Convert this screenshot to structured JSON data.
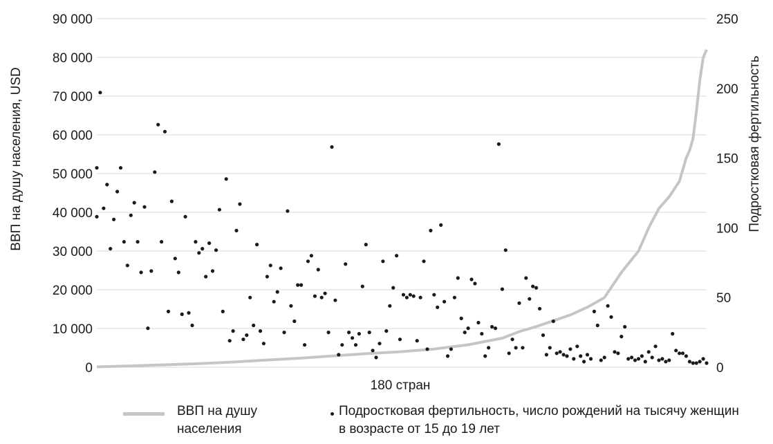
{
  "chart_data": {
    "type": "line+scatter",
    "xlabel": "180 стран",
    "ylabel_left": "ВВП на душу населения, USD",
    "ylabel_right": "Подростковая фертильность",
    "ylim_left": [
      0,
      90000
    ],
    "ylim_right": [
      0,
      250
    ],
    "yticks_left": [
      "0",
      "10 000",
      "20 000",
      "30 000",
      "40 000",
      "50 000",
      "60 000",
      "70 000",
      "80 000",
      "90 000"
    ],
    "yticks_right": [
      "0",
      "50",
      "100",
      "150",
      "200",
      "250"
    ],
    "x_count": 180,
    "legend_position": "bottom",
    "colors": {
      "gdp_line": "#c4c6c6",
      "fertility_points": "#1a1a1a"
    },
    "series": [
      {
        "name": "ВВП на душу населения",
        "kind": "line",
        "axis": "left",
        "x": [
          1,
          10,
          20,
          30,
          40,
          50,
          60,
          70,
          80,
          90,
          100,
          110,
          120,
          125,
          130,
          135,
          140,
          145,
          150,
          155,
          160,
          163,
          166,
          169,
          172,
          174,
          175,
          176,
          177,
          178,
          179,
          180
        ],
        "values": [
          100,
          300,
          600,
          900,
          1300,
          1800,
          2300,
          2900,
          3500,
          4000,
          4700,
          5800,
          7500,
          9200,
          10500,
          12000,
          13500,
          15500,
          18000,
          24500,
          30000,
          36000,
          41000,
          44000,
          48000,
          54000,
          56000,
          59000,
          66000,
          74000,
          80000,
          82000
        ]
      },
      {
        "name": "Подростковая фертильность, число рождений на тысячу женщин в возрасте от 15 до 19 лет",
        "kind": "scatter",
        "axis": "right",
        "points": [
          [
            1,
            108
          ],
          [
            1,
            143
          ],
          [
            2,
            197
          ],
          [
            3,
            114
          ],
          [
            4,
            131
          ],
          [
            5,
            85
          ],
          [
            6,
            106
          ],
          [
            7,
            126
          ],
          [
            8,
            143
          ],
          [
            9,
            90
          ],
          [
            10,
            73
          ],
          [
            11,
            109
          ],
          [
            12,
            118
          ],
          [
            13,
            90
          ],
          [
            14,
            68
          ],
          [
            15,
            115
          ],
          [
            16,
            28
          ],
          [
            17,
            69
          ],
          [
            18,
            140
          ],
          [
            19,
            174
          ],
          [
            20,
            90
          ],
          [
            21,
            169
          ],
          [
            22,
            40
          ],
          [
            23,
            119
          ],
          [
            24,
            78
          ],
          [
            25,
            68
          ],
          [
            26,
            38
          ],
          [
            27,
            108
          ],
          [
            28,
            39
          ],
          [
            29,
            30
          ],
          [
            30,
            90
          ],
          [
            31,
            82
          ],
          [
            32,
            85
          ],
          [
            33,
            65
          ],
          [
            34,
            89
          ],
          [
            35,
            69
          ],
          [
            36,
            84
          ],
          [
            37,
            113
          ],
          [
            38,
            40
          ],
          [
            39,
            135
          ],
          [
            40,
            19
          ],
          [
            41,
            26
          ],
          [
            42,
            98
          ],
          [
            43,
            117
          ],
          [
            44,
            20
          ],
          [
            45,
            23
          ],
          [
            46,
            50
          ],
          [
            47,
            30
          ],
          [
            48,
            88
          ],
          [
            49,
            26
          ],
          [
            50,
            17
          ],
          [
            51,
            65
          ],
          [
            52,
            73
          ],
          [
            53,
            47
          ],
          [
            54,
            54
          ],
          [
            55,
            71
          ],
          [
            56,
            25
          ],
          [
            57,
            112
          ],
          [
            58,
            44
          ],
          [
            59,
            33
          ],
          [
            60,
            59
          ],
          [
            61,
            59
          ],
          [
            62,
            16
          ],
          [
            63,
            76
          ],
          [
            64,
            80
          ],
          [
            65,
            51
          ],
          [
            66,
            70
          ],
          [
            67,
            50
          ],
          [
            68,
            53
          ],
          [
            69,
            25
          ],
          [
            70,
            158
          ],
          [
            71,
            48
          ],
          [
            72,
            9
          ],
          [
            73,
            16
          ],
          [
            74,
            74
          ],
          [
            75,
            25
          ],
          [
            76,
            21
          ],
          [
            77,
            16
          ],
          [
            78,
            24
          ],
          [
            79,
            58
          ],
          [
            80,
            88
          ],
          [
            81,
            25
          ],
          [
            82,
            12
          ],
          [
            83,
            7
          ],
          [
            84,
            17
          ],
          [
            85,
            76
          ],
          [
            86,
            26
          ],
          [
            87,
            44
          ],
          [
            88,
            57
          ],
          [
            89,
            80
          ],
          [
            90,
            20
          ],
          [
            91,
            52
          ],
          [
            92,
            50
          ],
          [
            93,
            52
          ],
          [
            94,
            51
          ],
          [
            95,
            19
          ],
          [
            96,
            50
          ],
          [
            97,
            76
          ],
          [
            98,
            13
          ],
          [
            99,
            98
          ],
          [
            100,
            52
          ],
          [
            101,
            43
          ],
          [
            102,
            102
          ],
          [
            103,
            47
          ],
          [
            104,
            8
          ],
          [
            105,
            13
          ],
          [
            106,
            50
          ],
          [
            107,
            64
          ],
          [
            108,
            35
          ],
          [
            109,
            25
          ],
          [
            110,
            28
          ],
          [
            111,
            63
          ],
          [
            112,
            60
          ],
          [
            113,
            32
          ],
          [
            114,
            24
          ],
          [
            115,
            8
          ],
          [
            116,
            14
          ],
          [
            117,
            29
          ],
          [
            118,
            28
          ],
          [
            119,
            160
          ],
          [
            120,
            56
          ],
          [
            121,
            84
          ],
          [
            122,
            10
          ],
          [
            123,
            20
          ],
          [
            124,
            14
          ],
          [
            125,
            46
          ],
          [
            126,
            14
          ],
          [
            127,
            64
          ],
          [
            128,
            49
          ],
          [
            129,
            58
          ],
          [
            130,
            57
          ],
          [
            131,
            42
          ],
          [
            132,
            23
          ],
          [
            133,
            9
          ],
          [
            134,
            14
          ],
          [
            135,
            33
          ],
          [
            136,
            10
          ],
          [
            137,
            11
          ],
          [
            138,
            9
          ],
          [
            139,
            8
          ],
          [
            140,
            13
          ],
          [
            141,
            6
          ],
          [
            142,
            15
          ],
          [
            143,
            8
          ],
          [
            144,
            4
          ],
          [
            145,
            9
          ],
          [
            146,
            6
          ],
          [
            147,
            40
          ],
          [
            148,
            30
          ],
          [
            149,
            5
          ],
          [
            150,
            7
          ],
          [
            151,
            44
          ],
          [
            152,
            36
          ],
          [
            153,
            11
          ],
          [
            154,
            10
          ],
          [
            155,
            22
          ],
          [
            156,
            29
          ],
          [
            157,
            6
          ],
          [
            158,
            7
          ],
          [
            159,
            5
          ],
          [
            160,
            6
          ],
          [
            161,
            8
          ],
          [
            162,
            4
          ],
          [
            163,
            11
          ],
          [
            164,
            7
          ],
          [
            165,
            15
          ],
          [
            166,
            5
          ],
          [
            167,
            6
          ],
          [
            168,
            4
          ],
          [
            169,
            5
          ],
          [
            170,
            24
          ],
          [
            171,
            12
          ],
          [
            172,
            10
          ],
          [
            173,
            10
          ],
          [
            174,
            8
          ],
          [
            175,
            4
          ],
          [
            176,
            3
          ],
          [
            177,
            3
          ],
          [
            178,
            4
          ],
          [
            179,
            6
          ],
          [
            180,
            3
          ]
        ]
      }
    ]
  }
}
